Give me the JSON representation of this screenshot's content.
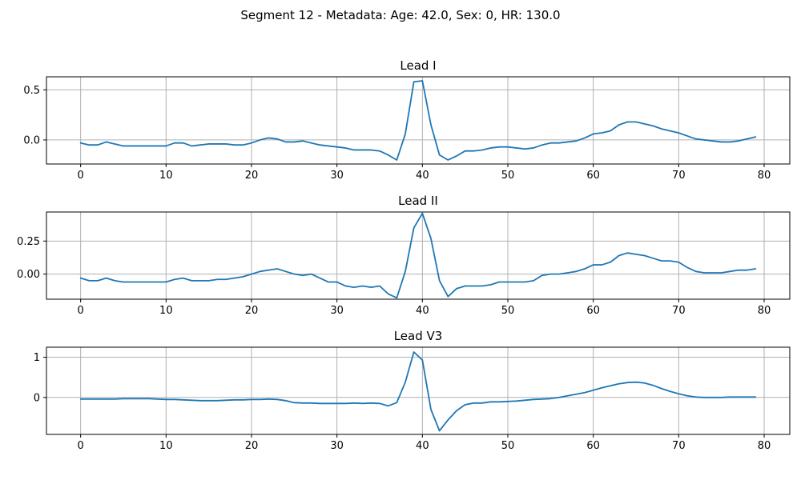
{
  "figure_title": "Segment 12 - Metadata: Age: 42.0, Sex: 0, HR: 130.0",
  "colors": {
    "line": "#1f77b4",
    "grid": "#b0b0b0"
  },
  "chart_data": [
    {
      "type": "line",
      "title": "Lead I",
      "xlim": [
        -4,
        83
      ],
      "ylim": [
        -0.24,
        0.63
      ],
      "xticks": [
        0,
        10,
        20,
        30,
        40,
        50,
        60,
        70,
        80
      ],
      "yticks": [
        0.0,
        0.5
      ],
      "ytick_labels": [
        "0.0",
        "0.5"
      ],
      "grid": true,
      "x": [
        0,
        1,
        2,
        3,
        4,
        5,
        6,
        7,
        8,
        9,
        10,
        11,
        12,
        13,
        14,
        15,
        16,
        17,
        18,
        19,
        20,
        21,
        22,
        23,
        24,
        25,
        26,
        27,
        28,
        29,
        30,
        31,
        32,
        33,
        34,
        35,
        36,
        37,
        38,
        39,
        40,
        41,
        42,
        43,
        44,
        45,
        46,
        47,
        48,
        49,
        50,
        51,
        52,
        53,
        54,
        55,
        56,
        57,
        58,
        59,
        60,
        61,
        62,
        63,
        64,
        65,
        66,
        67,
        68,
        69,
        70,
        71,
        72,
        73,
        74,
        75,
        76,
        77,
        78,
        79
      ],
      "y": [
        -0.03,
        -0.05,
        -0.05,
        -0.02,
        -0.04,
        -0.06,
        -0.06,
        -0.06,
        -0.06,
        -0.06,
        -0.06,
        -0.03,
        -0.03,
        -0.06,
        -0.05,
        -0.04,
        -0.04,
        -0.04,
        -0.05,
        -0.05,
        -0.03,
        0.0,
        0.02,
        0.01,
        -0.02,
        -0.02,
        -0.01,
        -0.03,
        -0.05,
        -0.06,
        -0.07,
        -0.08,
        -0.1,
        -0.1,
        -0.1,
        -0.11,
        -0.15,
        -0.2,
        0.06,
        0.58,
        0.59,
        0.15,
        -0.15,
        -0.2,
        -0.16,
        -0.11,
        -0.11,
        -0.1,
        -0.08,
        -0.07,
        -0.07,
        -0.08,
        -0.09,
        -0.08,
        -0.05,
        -0.03,
        -0.03,
        -0.02,
        -0.01,
        0.02,
        0.06,
        0.07,
        0.09,
        0.15,
        0.18,
        0.18,
        0.16,
        0.14,
        0.11,
        0.09,
        0.07,
        0.04,
        0.01,
        0.0,
        -0.01,
        -0.02,
        -0.02,
        -0.01,
        0.01,
        0.03
      ]
    },
    {
      "type": "line",
      "title": "Lead II",
      "xlim": [
        -4,
        83
      ],
      "ylim": [
        -0.19,
        0.47
      ],
      "xticks": [
        0,
        10,
        20,
        30,
        40,
        50,
        60,
        70,
        80
      ],
      "yticks": [
        0.0,
        0.25
      ],
      "ytick_labels": [
        "0.00",
        "0.25"
      ],
      "grid": true,
      "x": [
        0,
        1,
        2,
        3,
        4,
        5,
        6,
        7,
        8,
        9,
        10,
        11,
        12,
        13,
        14,
        15,
        16,
        17,
        18,
        19,
        20,
        21,
        22,
        23,
        24,
        25,
        26,
        27,
        28,
        29,
        30,
        31,
        32,
        33,
        34,
        35,
        36,
        37,
        38,
        39,
        40,
        41,
        42,
        43,
        44,
        45,
        46,
        47,
        48,
        49,
        50,
        51,
        52,
        53,
        54,
        55,
        56,
        57,
        58,
        59,
        60,
        61,
        62,
        63,
        64,
        65,
        66,
        67,
        68,
        69,
        70,
        71,
        72,
        73,
        74,
        75,
        76,
        77,
        78,
        79
      ],
      "y": [
        -0.03,
        -0.05,
        -0.05,
        -0.03,
        -0.05,
        -0.06,
        -0.06,
        -0.06,
        -0.06,
        -0.06,
        -0.06,
        -0.04,
        -0.03,
        -0.05,
        -0.05,
        -0.05,
        -0.04,
        -0.04,
        -0.03,
        -0.02,
        0.0,
        0.02,
        0.03,
        0.04,
        0.02,
        0.0,
        -0.01,
        0.0,
        -0.03,
        -0.06,
        -0.06,
        -0.09,
        -0.1,
        -0.09,
        -0.1,
        -0.09,
        -0.15,
        -0.18,
        0.02,
        0.35,
        0.46,
        0.27,
        -0.05,
        -0.17,
        -0.11,
        -0.09,
        -0.09,
        -0.09,
        -0.08,
        -0.06,
        -0.06,
        -0.06,
        -0.06,
        -0.05,
        -0.01,
        0.0,
        0.0,
        0.01,
        0.02,
        0.04,
        0.07,
        0.07,
        0.09,
        0.14,
        0.16,
        0.15,
        0.14,
        0.12,
        0.1,
        0.1,
        0.09,
        0.05,
        0.02,
        0.01,
        0.01,
        0.01,
        0.02,
        0.03,
        0.03,
        0.04
      ]
    },
    {
      "type": "line",
      "title": "Lead V3",
      "xlim": [
        -4,
        83
      ],
      "ylim": [
        -0.92,
        1.25
      ],
      "xticks": [
        0,
        10,
        20,
        30,
        40,
        50,
        60,
        70,
        80
      ],
      "yticks": [
        0,
        1
      ],
      "ytick_labels": [
        "0",
        "1"
      ],
      "grid": true,
      "x": [
        0,
        1,
        2,
        3,
        4,
        5,
        6,
        7,
        8,
        9,
        10,
        11,
        12,
        13,
        14,
        15,
        16,
        17,
        18,
        19,
        20,
        21,
        22,
        23,
        24,
        25,
        26,
        27,
        28,
        29,
        30,
        31,
        32,
        33,
        34,
        35,
        36,
        37,
        38,
        39,
        40,
        41,
        42,
        43,
        44,
        45,
        46,
        47,
        48,
        49,
        50,
        51,
        52,
        53,
        54,
        55,
        56,
        57,
        58,
        59,
        60,
        61,
        62,
        63,
        64,
        65,
        66,
        67,
        68,
        69,
        70,
        71,
        72,
        73,
        74,
        75,
        76,
        77,
        78,
        79
      ],
      "y": [
        -0.04,
        -0.04,
        -0.04,
        -0.04,
        -0.04,
        -0.03,
        -0.03,
        -0.03,
        -0.03,
        -0.04,
        -0.05,
        -0.05,
        -0.06,
        -0.07,
        -0.08,
        -0.08,
        -0.08,
        -0.07,
        -0.06,
        -0.06,
        -0.05,
        -0.05,
        -0.04,
        -0.05,
        -0.08,
        -0.13,
        -0.14,
        -0.14,
        -0.15,
        -0.15,
        -0.15,
        -0.15,
        -0.14,
        -0.15,
        -0.14,
        -0.15,
        -0.21,
        -0.13,
        0.38,
        1.13,
        0.93,
        -0.3,
        -0.83,
        -0.56,
        -0.33,
        -0.18,
        -0.14,
        -0.14,
        -0.11,
        -0.11,
        -0.1,
        -0.09,
        -0.07,
        -0.05,
        -0.04,
        -0.03,
        0.0,
        0.04,
        0.08,
        0.12,
        0.18,
        0.24,
        0.29,
        0.34,
        0.37,
        0.38,
        0.36,
        0.3,
        0.22,
        0.15,
        0.09,
        0.04,
        0.01,
        0.0,
        0.0,
        0.0,
        0.01,
        0.01,
        0.01,
        0.01
      ]
    }
  ]
}
